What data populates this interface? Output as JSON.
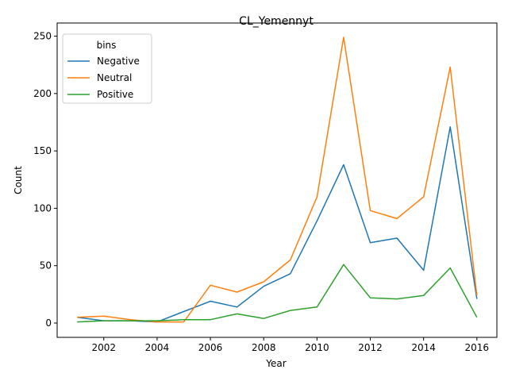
{
  "chart_data": {
    "type": "line",
    "title": "CL_Yemennyt",
    "xlabel": "Year",
    "ylabel": "Count",
    "x": [
      2001,
      2002,
      2003,
      2004,
      2005,
      2006,
      2007,
      2008,
      2009,
      2010,
      2011,
      2012,
      2013,
      2014,
      2015,
      2016
    ],
    "xlim": [
      2000.25,
      2016.75
    ],
    "ylim": [
      -12.45,
      261.45
    ],
    "xticks": [
      2002,
      2004,
      2006,
      2008,
      2010,
      2012,
      2014,
      2016
    ],
    "xtick_labels": [
      "2002",
      "2004",
      "2006",
      "2008",
      "2010",
      "2012",
      "2014",
      "2016"
    ],
    "yticks": [
      0,
      50,
      100,
      150,
      200,
      250
    ],
    "ytick_labels": [
      "0",
      "50",
      "100",
      "150",
      "200",
      "250"
    ],
    "grid": false,
    "legend": {
      "title": "bins",
      "placement": "top-left"
    },
    "series": [
      {
        "name": "Negative",
        "color": "#1f77b4",
        "values": [
          5,
          2,
          2,
          1,
          10,
          19,
          14,
          32,
          43,
          89,
          138,
          70,
          74,
          46,
          171,
          21
        ]
      },
      {
        "name": "Neutral",
        "color": "#ff7f0e",
        "values": [
          5,
          6,
          3,
          1,
          1,
          33,
          27,
          36,
          55,
          110,
          249,
          98,
          91,
          110,
          223,
          24
        ]
      },
      {
        "name": "Positive",
        "color": "#2ca02c",
        "values": [
          1,
          2,
          2,
          2,
          3,
          3,
          8,
          4,
          11,
          14,
          51,
          22,
          21,
          24,
          48,
          5
        ]
      }
    ]
  }
}
